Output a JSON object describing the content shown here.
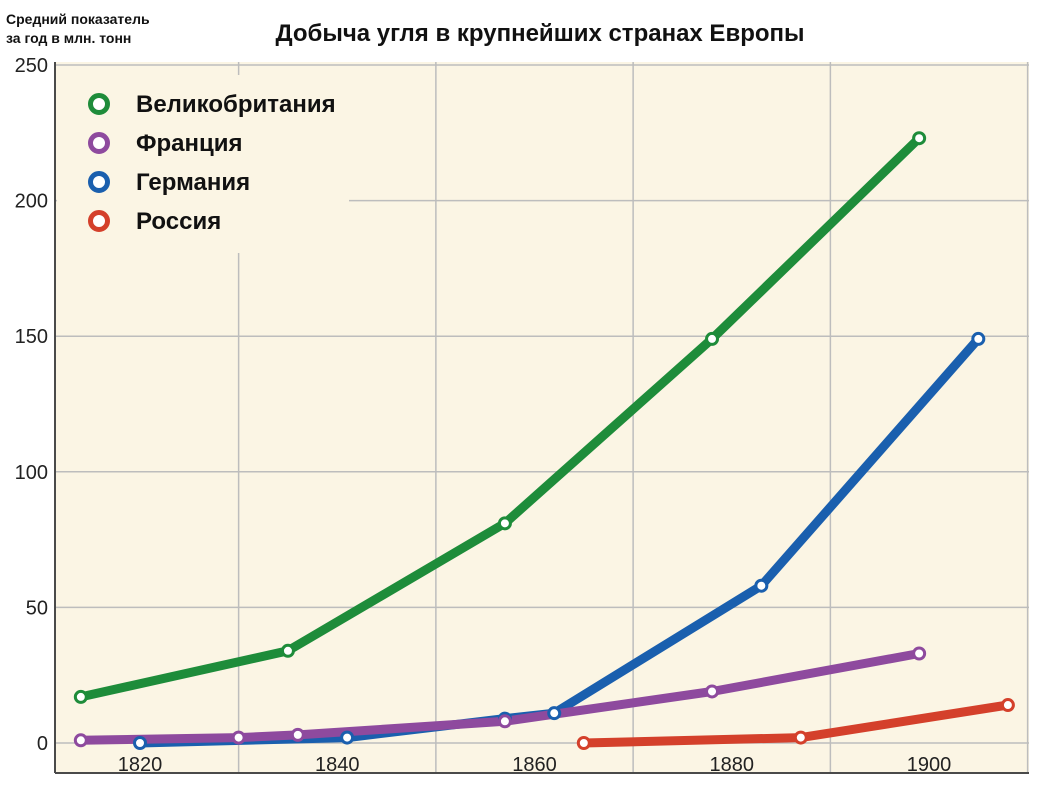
{
  "chart_data": {
    "type": "line",
    "title": "Добыча угля в крупнейших странах Европы",
    "ylabel_lines": [
      "Средний показатель",
      "за год в млн. тонн"
    ],
    "xlabel": "",
    "x_ticks": [
      1820,
      1840,
      1860,
      1880,
      1900
    ],
    "y_ticks": [
      0,
      50,
      100,
      150,
      200,
      250
    ],
    "xlim": [
      1813.8,
      1908.5
    ],
    "ylim": [
      0,
      250
    ],
    "grid": true,
    "legend_position": "top-left",
    "background": "#fbf5e4",
    "series": [
      {
        "name": "Великобритания",
        "color": "#1e8c3a",
        "x": [
          1814,
          1835,
          1857,
          1878,
          1899
        ],
        "y": [
          17,
          34,
          81,
          149,
          223
        ]
      },
      {
        "name": "Франция",
        "color": "#8e4a9e",
        "x": [
          1814,
          1830,
          1836,
          1857,
          1878,
          1899
        ],
        "y": [
          1,
          2,
          3,
          8,
          19,
          33
        ]
      },
      {
        "name": "Германия",
        "color": "#1a5fae",
        "x": [
          1820,
          1841,
          1857,
          1862,
          1883,
          1905
        ],
        "y": [
          0,
          2,
          9,
          11,
          58,
          149
        ]
      },
      {
        "name": "Россия",
        "color": "#d4402b",
        "x": [
          1865,
          1887,
          1908
        ],
        "y": [
          0,
          2,
          14
        ]
      }
    ]
  }
}
